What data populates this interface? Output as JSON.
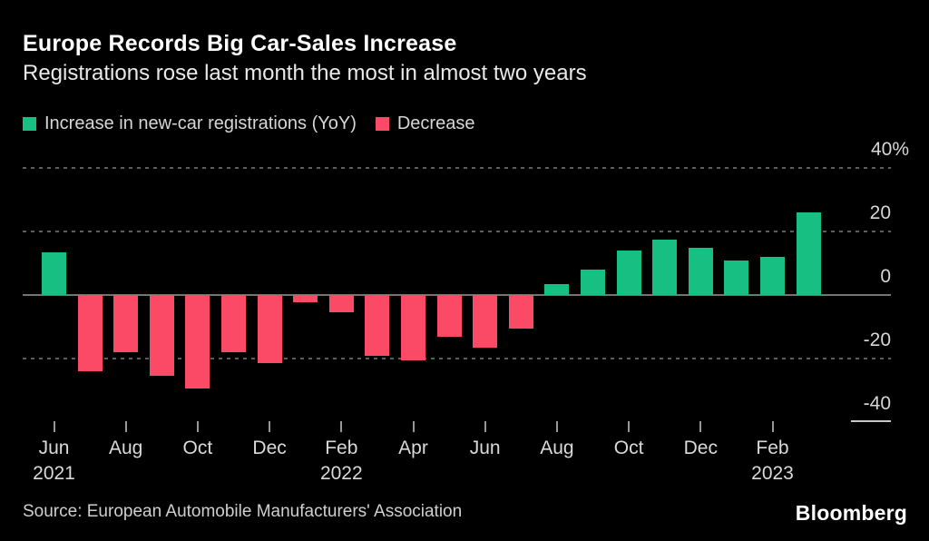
{
  "chart_data": {
    "type": "bar",
    "title": "Europe Records Big Car-Sales Increase",
    "subtitle": "Registrations rose last month the most in almost two years",
    "unit": "%",
    "categories": [
      "Jun 2021",
      "Jul 2021",
      "Aug 2021",
      "Sep 2021",
      "Oct 2021",
      "Nov 2021",
      "Dec 2021",
      "Jan 2022",
      "Feb 2022",
      "Mar 2022",
      "Apr 2022",
      "May 2022",
      "Jun 2022",
      "Jul 2022",
      "Aug 2022",
      "Sep 2022",
      "Oct 2022",
      "Nov 2022",
      "Dec 2022",
      "Jan 2023",
      "Feb 2023",
      "Mar 2023"
    ],
    "values": [
      13.5,
      -24,
      -18,
      -25.5,
      -29.5,
      -18,
      -21.5,
      -2.4,
      -5.5,
      -19,
      -20.5,
      -13,
      -16.5,
      -10.5,
      3.5,
      8,
      14,
      17.5,
      15,
      11,
      12,
      26
    ],
    "ylim": [
      -45,
      45
    ],
    "y_ticks": [
      {
        "value": 40,
        "label": "40%"
      },
      {
        "value": 20,
        "label": "20"
      },
      {
        "value": 0,
        "label": "0"
      },
      {
        "value": -20,
        "label": "-20"
      },
      {
        "value": -40,
        "label": "-40"
      }
    ],
    "x_ticks": [
      {
        "index": 0,
        "label": "Jun",
        "year": "2021"
      },
      {
        "index": 2,
        "label": "Aug"
      },
      {
        "index": 4,
        "label": "Oct"
      },
      {
        "index": 6,
        "label": "Dec"
      },
      {
        "index": 8,
        "label": "Feb",
        "year": "2022"
      },
      {
        "index": 10,
        "label": "Apr"
      },
      {
        "index": 12,
        "label": "Jun"
      },
      {
        "index": 14,
        "label": "Aug"
      },
      {
        "index": 16,
        "label": "Oct"
      },
      {
        "index": 18,
        "label": "Dec"
      },
      {
        "index": 20,
        "label": "Feb",
        "year": "2023"
      }
    ],
    "legend": [
      {
        "label": "Increase in new-car registrations (YoY)",
        "color": "#18BF83"
      },
      {
        "label": "Decrease",
        "color": "#FA4A66"
      }
    ],
    "colors": {
      "increase": "#18BF83",
      "decrease": "#FA4A66"
    },
    "grid": "horizontal dotted at 40/20/-20, solid zero line, short end-cap at -40",
    "legend_position": "top-left"
  },
  "footer": {
    "source": "Source: European Automobile Manufacturers' Association",
    "brand": "Bloomberg"
  }
}
